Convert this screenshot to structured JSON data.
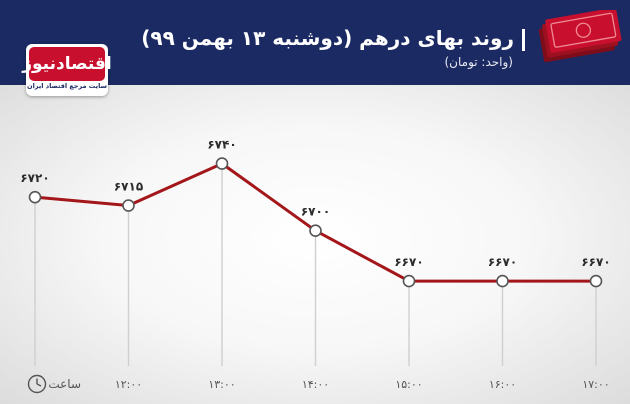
{
  "header": {
    "title": "روند بهای درهم (دوشنبه ۱۳ بهمن ۹۹)",
    "subtitle": "(واحد: تومان)",
    "logo_text": "اقتصادنیوز",
    "logo_sub": "سایت مرجع اقتصاد ایران",
    "icon": "banknotes-icon",
    "clock_icon": "clock-icon"
  },
  "colors": {
    "header_bg": "#1b2a63",
    "line": "#a3161a",
    "accent_red": "#c8102e"
  },
  "chart_data": {
    "type": "line",
    "title": "روند بهای درهم (دوشنبه ۱۳ بهمن ۹۹)",
    "ylabel": "(واحد: تومان)",
    "xlabel": "ساعت",
    "x_labels": [
      "",
      "۱۲:۰۰",
      "۱۳:۰۰",
      "۱۴:۰۰",
      "۱۵:۰۰",
      "۱۶:۰۰",
      "۱۷:۰۰"
    ],
    "values": [
      6720,
      6715,
      6740,
      6700,
      6670,
      6670,
      6670
    ],
    "value_labels": [
      "۶۷۲۰",
      "۶۷۱۵",
      "۶۷۴۰",
      "۶۷۰۰",
      "۶۶۷۰",
      "۶۶۷۰",
      "۶۶۷۰"
    ],
    "ylim": [
      6620,
      6760
    ],
    "grid": "vertical-only"
  }
}
